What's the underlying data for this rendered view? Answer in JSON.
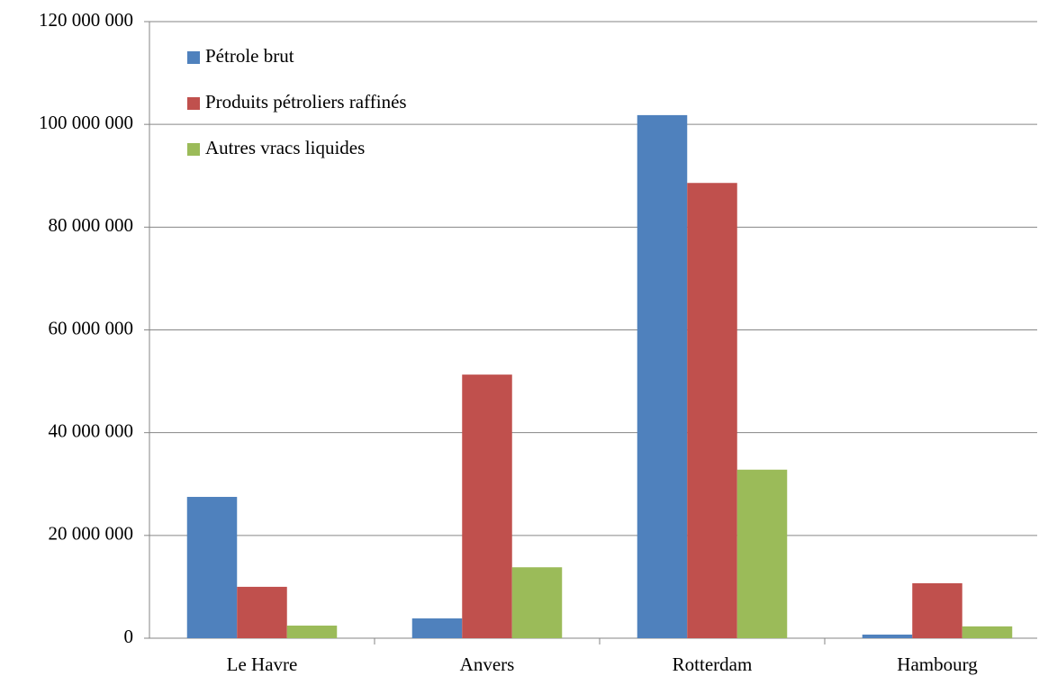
{
  "chart_data": {
    "type": "bar",
    "categories": [
      "Le Havre",
      "Anvers",
      "Rotterdam",
      "Hambourg"
    ],
    "series": [
      {
        "name": "Pétrole brut",
        "color": "#4f81bd",
        "values": [
          27500000,
          3850000,
          101800000,
          700000
        ]
      },
      {
        "name": "Produits pétroliers raffinés",
        "color": "#c0504d",
        "values": [
          10000000,
          51300000,
          88600000,
          10700000
        ]
      },
      {
        "name": "Autres vracs liquides",
        "color": "#9bbb59",
        "values": [
          2450000,
          13800000,
          32800000,
          2300000
        ]
      }
    ],
    "ylim": [
      0,
      120000000
    ],
    "yticks": [
      {
        "value": 0,
        "label": "0"
      },
      {
        "value": 20000000,
        "label": "20 000 000"
      },
      {
        "value": 40000000,
        "label": "40 000 000"
      },
      {
        "value": 60000000,
        "label": "60 000 000"
      },
      {
        "value": 80000000,
        "label": "80 000 000"
      },
      {
        "value": 100000000,
        "label": "100 000 000"
      },
      {
        "value": 120000000,
        "label": "120 000 000"
      }
    ],
    "grid": true,
    "legend": "top-left"
  }
}
